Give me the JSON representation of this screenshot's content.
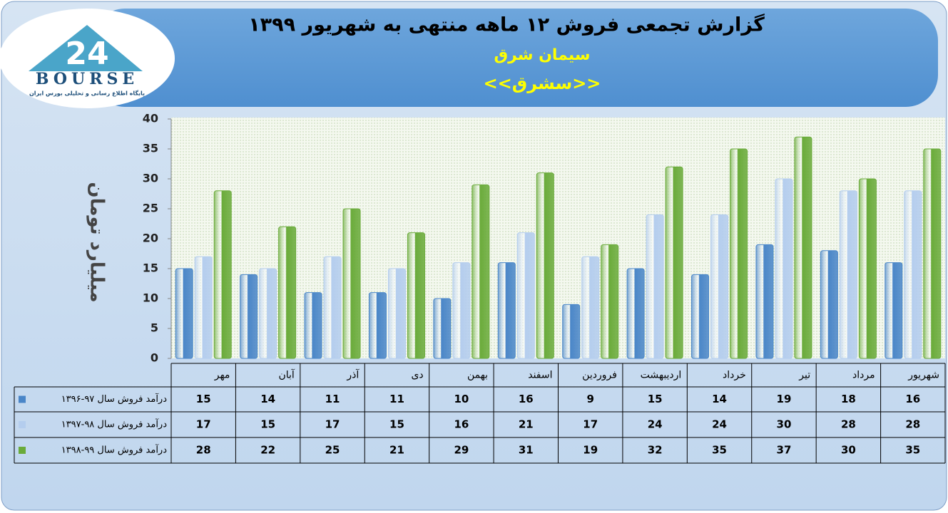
{
  "logo": {
    "mark": "24",
    "name": "BOURSE",
    "tagline": "پایگاه اطلاع رسانی و تحلیلی بورس ایران"
  },
  "chart_data": {
    "type": "bar",
    "title": "گزارش تجمعی فروش ۱۲ ماهه منتهی به شهریور ۱۳۹۹",
    "subtitle": "سیمان شرق",
    "symbol": "<<سشرق>>",
    "y_label": "میلیارد تومان",
    "categories": [
      "مهر",
      "آبان",
      "آذر",
      "دی",
      "بهمن",
      "اسفند",
      "فروردین",
      "اردیبهشت",
      "خرداد",
      "تیر",
      "مرداد",
      "شهریور"
    ],
    "series": [
      {
        "name": "درآمد فروش سال ۹۷-۱۳۹۶",
        "color": "#4a86c8",
        "values": [
          15,
          14,
          11,
          11,
          10,
          16,
          9,
          15,
          14,
          19,
          18,
          16
        ]
      },
      {
        "name": "درآمد فروش سال ۹۸-۱۳۹۷",
        "color": "#b4cdee",
        "values": [
          17,
          15,
          17,
          15,
          16,
          21,
          17,
          24,
          24,
          30,
          28,
          28
        ]
      },
      {
        "name": "درآمد فروش سال ۹۹-۱۳۹۸",
        "color": "#6aab3a",
        "values": [
          28,
          22,
          25,
          21,
          29,
          31,
          19,
          32,
          35,
          37,
          30,
          35
        ]
      }
    ],
    "ylim": [
      0,
      40
    ],
    "yticks": [
      0,
      5,
      10,
      15,
      20,
      25,
      30,
      35,
      40
    ]
  }
}
